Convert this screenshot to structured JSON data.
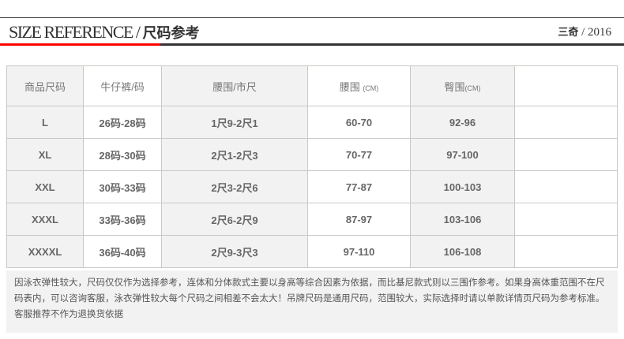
{
  "header": {
    "title_en": "SIZE REFERENCE / ",
    "title_cn": "尺码参考",
    "brand_cn": "三奇",
    "brand_year": " / 2016"
  },
  "colors": {
    "accent": "#ff0000",
    "dark": "#333333",
    "cell_gray": "#f2f2f2"
  },
  "table": {
    "headers": [
      {
        "label": "商品尺码"
      },
      {
        "label": "牛仔裤/码"
      },
      {
        "label": "腰围/市尺"
      },
      {
        "label": "腰围 ",
        "unit": "(CM)"
      },
      {
        "label": "臀围",
        "unit": "(CM)"
      },
      {
        "label": ""
      }
    ],
    "rows": [
      [
        "L",
        "26码-28码",
        "1尺9-2尺1",
        "60-70",
        "92-96",
        ""
      ],
      [
        "XL",
        "28码-30码",
        "2尺1-2尺3",
        "70-77",
        "97-100",
        ""
      ],
      [
        "XXL",
        "30码-33码",
        "2尺3-2尺6",
        "77-87",
        "100-103",
        ""
      ],
      [
        "XXXL",
        "33码-36码",
        "2尺6-2尺9",
        "87-97",
        "103-106",
        ""
      ],
      [
        "XXXXL",
        "36码-40码",
        "2尺9-3尺3",
        "97-110",
        "106-108",
        ""
      ]
    ]
  },
  "note": "因泳衣弹性较大，尺码仅仅作为选择参考，连体和分体款式主要以身高等综合因素为依据，而比基尼款式则以三围作参考。如果身高体重范围不在尺码表内，可以咨询客服，泳衣弹性较大每个尺码之间相差不会太大！吊牌尺码是通用尺码，范围较大，实际选择时请以单款详情页尺码为参考标准。客服推荐不作为退换货依据"
}
